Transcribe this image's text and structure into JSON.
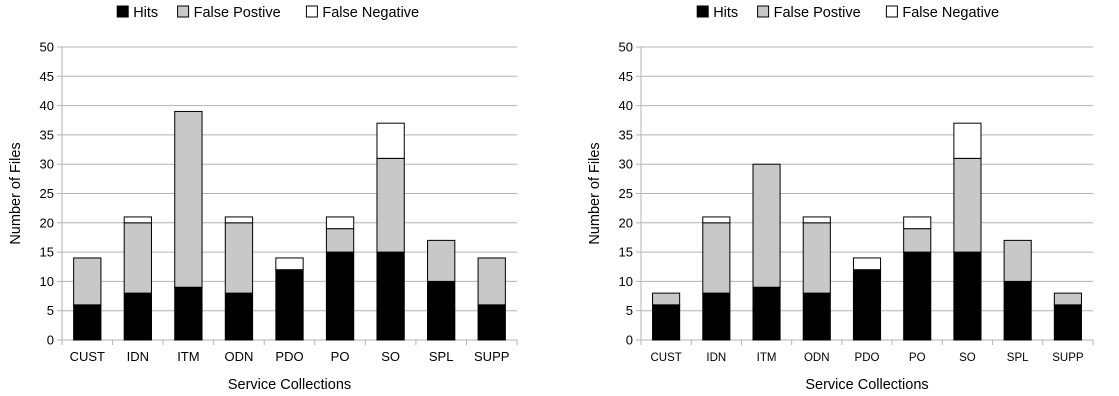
{
  "chart_data": [
    {
      "type": "bar",
      "stacked": true,
      "title": "",
      "xlabel": "Service Collections",
      "ylabel": "Number of Files",
      "ylim": [
        0,
        50
      ],
      "yticks": [
        0,
        5,
        10,
        15,
        20,
        25,
        30,
        35,
        40,
        45,
        50
      ],
      "grid": true,
      "legend_position": "top-center",
      "categories": [
        "CUST",
        "IDN",
        "ITM",
        "ODN",
        "PDO",
        "PO",
        "SO",
        "SPL",
        "SUPP"
      ],
      "series": [
        {
          "name": "Hits",
          "color": "#000000",
          "values": [
            6,
            8,
            9,
            8,
            12,
            15,
            15,
            10,
            6
          ]
        },
        {
          "name": "False Postive",
          "color": "#c8c8c8",
          "values": [
            8,
            12,
            30,
            12,
            0,
            4,
            16,
            7,
            8
          ]
        },
        {
          "name": "False Negative",
          "color": "#ffffff",
          "values": [
            0,
            1,
            0,
            1,
            2,
            2,
            6,
            0,
            0
          ]
        }
      ]
    },
    {
      "type": "bar",
      "stacked": true,
      "title": "",
      "xlabel": "Service Collections",
      "ylabel": "Number of Files",
      "ylim": [
        0,
        50
      ],
      "yticks": [
        0,
        5,
        10,
        15,
        20,
        25,
        30,
        35,
        40,
        45,
        50
      ],
      "grid": true,
      "legend_position": "top-center",
      "categories": [
        "CUST",
        "IDN",
        "ITM",
        "ODN",
        "PDO",
        "PO",
        "SO",
        "SPL",
        "SUPP"
      ],
      "series": [
        {
          "name": "Hits",
          "color": "#000000",
          "values": [
            6,
            8,
            9,
            8,
            12,
            15,
            15,
            10,
            6
          ]
        },
        {
          "name": "False Postive",
          "color": "#c8c8c8",
          "values": [
            2,
            12,
            21,
            12,
            0,
            4,
            16,
            7,
            2
          ]
        },
        {
          "name": "False Negative",
          "color": "#ffffff",
          "values": [
            0,
            1,
            0,
            1,
            2,
            2,
            6,
            0,
            0
          ]
        }
      ]
    }
  ]
}
